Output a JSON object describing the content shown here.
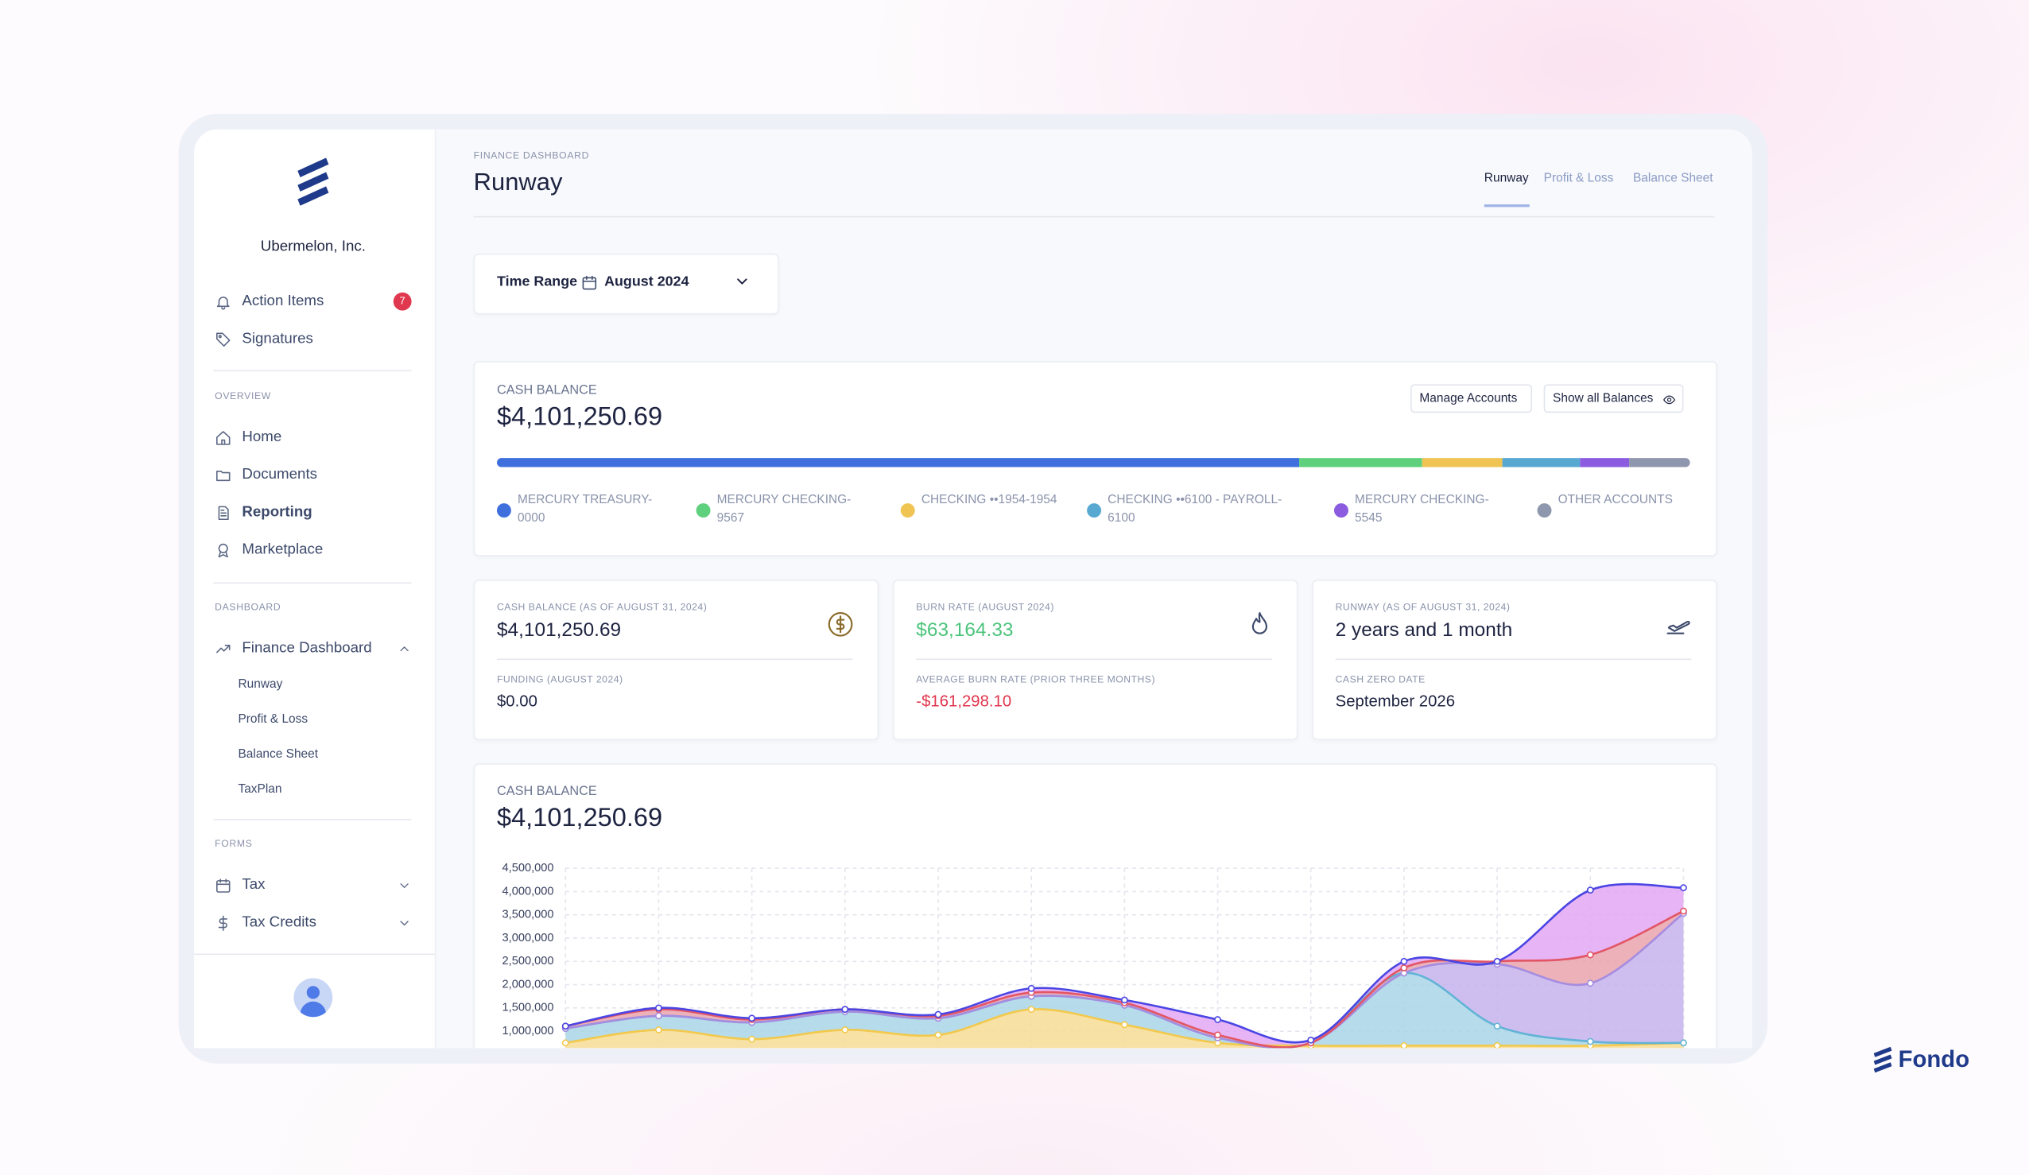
{
  "sidebar": {
    "company": "Ubermelon, Inc.",
    "top_items": [
      {
        "label": "Action Items",
        "badge": "7"
      },
      {
        "label": "Signatures"
      }
    ],
    "overview": {
      "title": "OVERVIEW",
      "items": [
        "Home",
        "Documents",
        "Reporting",
        "Marketplace"
      ]
    },
    "dashboard": {
      "title": "DASHBOARD",
      "item": "Finance Dashboard",
      "subitems": [
        "Runway",
        "Profit & Loss",
        "Balance Sheet",
        "TaxPlan"
      ]
    },
    "forms": {
      "title": "FORMS",
      "items": [
        "Tax",
        "Tax Credits"
      ]
    }
  },
  "header": {
    "eyebrow": "FINANCE DASHBOARD",
    "title": "Runway",
    "tabs": [
      "Runway",
      "Profit & Loss",
      "Balance Sheet"
    ]
  },
  "time_range": {
    "label": "Time Range",
    "value": "August 2024"
  },
  "balance_card": {
    "label": "CASH BALANCE",
    "amount": "$4,101,250.69",
    "buttons": [
      "Manage Accounts",
      "Show all Balances"
    ],
    "accounts": [
      {
        "name": "MERCURY TREASURY-0000",
        "color": "#3e6fdc",
        "share": 67.2
      },
      {
        "name": "MERCURY CHECKING-9567",
        "color": "#5fd07e",
        "share": 10.4
      },
      {
        "name": "CHECKING ••1954-1954",
        "color": "#f0c453",
        "share": 6.7
      },
      {
        "name": "CHECKING ••6100 - PAYROLL-6100",
        "color": "#57a9d1",
        "share": 6.5
      },
      {
        "name": "MERCURY CHECKING-5545",
        "color": "#8b5ce0",
        "share": 4.1
      },
      {
        "name": "OTHER ACCOUNTS",
        "color": "#8e97ad",
        "share": 5.1
      }
    ]
  },
  "stats": [
    {
      "label": "CASH BALANCE (AS OF AUGUST 31, 2024)",
      "value": "$4,101,250.69",
      "sub_label": "FUNDING (AUGUST 2024)",
      "sub_value": "$0.00"
    },
    {
      "label": "BURN RATE (AUGUST 2024)",
      "value": "$63,164.33",
      "value_color": "#4cc47c",
      "sub_label": "AVERAGE BURN RATE (PRIOR THREE MONTHS)",
      "sub_value": "-$161,298.10",
      "sub_value_color": "#e0354d"
    },
    {
      "label": "RUNWAY (AS OF AUGUST 31, 2024)",
      "value": "2 years and 1 month",
      "sub_label": "CASH ZERO DATE",
      "sub_value": "September 2026"
    }
  ],
  "brand": "Fondo",
  "chart_data": {
    "type": "stacked_area",
    "title": "CASH BALANCE",
    "subtitle": "$4,101,250.69",
    "categories": [
      null,
      null,
      null,
      null,
      null,
      null,
      null,
      null,
      null,
      null,
      null,
      null,
      null
    ],
    "ylim": [
      0,
      4500000
    ],
    "yticks": [
      {
        "value": 1000000,
        "label": "1,000,000"
      },
      {
        "value": 1500000,
        "label": "1,500,000"
      },
      {
        "value": 2000000,
        "label": "2,000,000"
      },
      {
        "value": 2500000,
        "label": "2,500,000"
      },
      {
        "value": 3000000,
        "label": "3,000,000"
      },
      {
        "value": 3500000,
        "label": "3,500,000"
      },
      {
        "value": 4000000,
        "label": "4,000,000"
      },
      {
        "value": 4500000,
        "label": "4,500,000"
      }
    ],
    "grid": true,
    "series": [
      {
        "color": "#f7dc95",
        "line_color": "#f2c94c",
        "values": [
          750000,
          1030000,
          830000,
          1030000,
          920000,
          1470000,
          1140000,
          750000,
          690000,
          690000,
          690000,
          690000,
          750000
        ]
      },
      {
        "color": "#a9d5e6",
        "line_color": "#62b3d6",
        "values": [
          310000,
          300000,
          360000,
          390000,
          360000,
          280000,
          420000,
          110000,
          60000,
          1560000,
          420000,
          90000,
          0
        ]
      },
      {
        "color": "#c6b3ec",
        "line_color": "#a58ce0",
        "values": [
          0,
          0,
          0,
          0,
          0,
          0,
          0,
          0,
          0,
          0,
          1330000,
          1250000,
          2780000
        ]
      },
      {
        "color": "#e9a3ad",
        "line_color": "#e25565",
        "values": [
          50000,
          140000,
          60000,
          50000,
          50000,
          80000,
          50000,
          60000,
          0,
          110000,
          60000,
          610000,
          50000
        ]
      },
      {
        "color": "#e3a7f3",
        "line_color": "#4a45e3",
        "values": [
          0,
          30000,
          30000,
          0,
          30000,
          90000,
          60000,
          330000,
          60000,
          140000,
          0,
          1390000,
          500000
        ]
      }
    ]
  }
}
